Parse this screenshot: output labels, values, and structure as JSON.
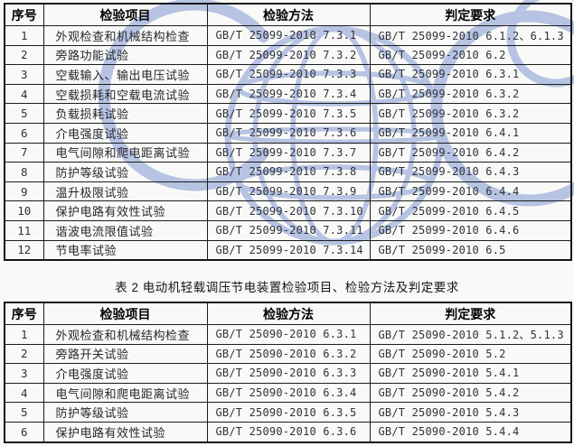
{
  "watermark": {
    "label": "CQC",
    "color": "#b6c3e2"
  },
  "colors": {
    "table_border": "#1c1c1c",
    "text": "#23262e",
    "page_background": "#f9f9f7"
  },
  "table1": {
    "headers": [
      "序号",
      "检验项目",
      "检验方法",
      "判定要求"
    ],
    "rows": [
      [
        "1",
        "外观检查和机械结构检查",
        "GB/T 25099-2010 7.3.1",
        "GB/T 25099-2010 6.1.2、6.1.3"
      ],
      [
        "2",
        "旁路功能试验",
        "GB/T 25099-2010 7.3.2",
        "GB/T 25099-2010 6.2"
      ],
      [
        "3",
        "空载输入、输出电压试验",
        "GB/T 25099-2010 7.3.3",
        "GB/T 25099-2010 6.3.1"
      ],
      [
        "4",
        "空载损耗和空载电流试验",
        "GB/T 25099-2010 7.3.4",
        "GB/T 25099-2010 6.3.2"
      ],
      [
        "5",
        "负载损耗试验",
        "GB/T 25099-2010 7.3.5",
        "GB/T 25099-2010 6.3.2"
      ],
      [
        "6",
        "介电强度试验",
        "GB/T 25099-2010 7.3.6",
        "GB/T 25099-2010 6.4.1"
      ],
      [
        "7",
        "电气间隙和爬电距离试验",
        "GB/T 25099-2010 7.3.7",
        "GB/T 25099-2010 6.4.2"
      ],
      [
        "8",
        "防护等级试验",
        "GB/T 25099-2010 7.3.8",
        "GB/T 25099-2010 6.4.3"
      ],
      [
        "9",
        "温升极限试验",
        "GB/T 25099-2010 7.3.9",
        "GB/T 25099-2010 6.4.4"
      ],
      [
        "10",
        "保护电路有效性试验",
        "GB/T 25099-2010 7.3.10",
        "GB/T 25099-2010 6.4.5"
      ],
      [
        "11",
        "谐波电流限值试验",
        "GB/T 25099-2010 7.3.11",
        "GB/T 25099-2010 6.4.6"
      ],
      [
        "12",
        "节电率试验",
        "GB/T 25099-2010 7.3.14",
        "GB/T 25099-2010 6.5"
      ]
    ]
  },
  "table2_caption": "表 2 电动机轻载调压节电装置检验项目、检验方法及判定要求",
  "table2": {
    "headers": [
      "序号",
      "检验项目",
      "检验方法",
      "判定要求"
    ],
    "rows": [
      [
        "1",
        "外观检查和机械结构检查",
        "GB/T 25090-2010 6.3.1",
        "GB/T 25090-2010 5.1.2、5.1.3"
      ],
      [
        "2",
        "旁路开关试验",
        "GB/T 25090-2010 6.3.2",
        "GB/T 25090-2010 5.2"
      ],
      [
        "3",
        "介电强度试验",
        "GB/T 25090-2010 6.3.3",
        "GB/T 25090-2010 5.4.1"
      ],
      [
        "4",
        "电气间隙和爬电距离试验",
        "GB/T 25090-2010 6.3.4",
        "GB/T 25090-2010 5.4.2"
      ],
      [
        "5",
        "防护等级试验",
        "GB/T 25090-2010 6.3.5",
        "GB/T 25090-2010 5.4.3"
      ],
      [
        "6",
        "保护电路有效性试验",
        "GB/T 25090-2010 6.3.6",
        "GB/T 25090-2010 5.4.4"
      ]
    ]
  }
}
